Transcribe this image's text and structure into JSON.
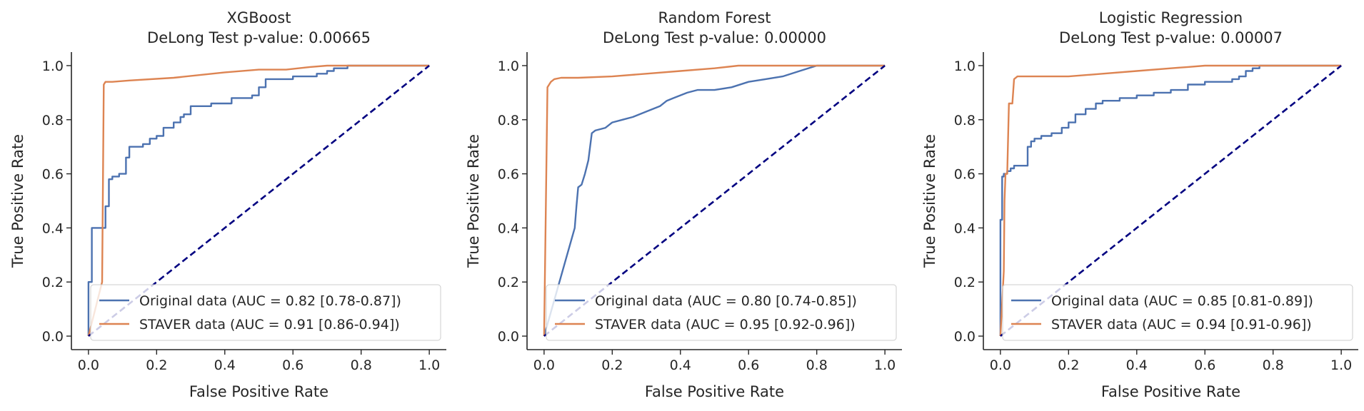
{
  "chart_data": [
    {
      "type": "line",
      "title": "XGBoost",
      "subtitle": "DeLong Test p-value: 0.00665",
      "xlabel": "False Positive Rate",
      "ylabel": "True Positive Rate",
      "xlim": [
        -0.05,
        1.05
      ],
      "ylim": [
        -0.05,
        1.05
      ],
      "xticks": [
        "0.0",
        "0.2",
        "0.4",
        "0.6",
        "0.8",
        "1.0"
      ],
      "yticks": [
        "0.0",
        "0.2",
        "0.4",
        "0.6",
        "0.8",
        "1.0"
      ],
      "grid": false,
      "legend_position": "bottom-right",
      "series": [
        {
          "name": "Original data (AUC = 0.82 [0.78-0.87])",
          "color": "#4c72b0",
          "step": true,
          "x": [
            0,
            0,
            0.01,
            0.01,
            0.05,
            0.05,
            0.06,
            0.07,
            0.09,
            0.11,
            0.12,
            0.13,
            0.16,
            0.18,
            0.2,
            0.22,
            0.25,
            0.27,
            0.28,
            0.3,
            0.33,
            0.36,
            0.4,
            0.42,
            0.45,
            0.48,
            0.5,
            0.52,
            0.55,
            0.6,
            0.65,
            0.67,
            0.7,
            0.72,
            0.74,
            0.76,
            0.78,
            0.85,
            1.0
          ],
          "y": [
            0,
            0.2,
            0.2,
            0.4,
            0.42,
            0.48,
            0.58,
            0.59,
            0.6,
            0.66,
            0.7,
            0.7,
            0.71,
            0.73,
            0.74,
            0.77,
            0.79,
            0.81,
            0.82,
            0.85,
            0.85,
            0.86,
            0.86,
            0.88,
            0.88,
            0.89,
            0.92,
            0.95,
            0.95,
            0.96,
            0.96,
            0.97,
            0.98,
            0.99,
            0.99,
            1.0,
            1.0,
            1.0,
            1.0
          ]
        },
        {
          "name": "STAVER data (AUC = 0.91 [0.86-0.94])",
          "color": "#dd8452",
          "step": false,
          "x": [
            0,
            0.04,
            0.045,
            0.05,
            0.07,
            0.12,
            0.25,
            0.4,
            0.5,
            0.58,
            0.65,
            0.7,
            0.75,
            1.0
          ],
          "y": [
            0,
            0.2,
            0.93,
            0.94,
            0.94,
            0.945,
            0.955,
            0.975,
            0.985,
            0.985,
            0.995,
            1.0,
            1.0,
            1.0
          ]
        },
        {
          "name": "",
          "color": "#000080",
          "dashed": true,
          "x": [
            0,
            1
          ],
          "y": [
            0,
            1
          ]
        }
      ]
    },
    {
      "type": "line",
      "title": "Random Forest",
      "subtitle": "DeLong Test p-value: 0.00000",
      "xlabel": "False Positive Rate",
      "ylabel": "True Positive Rate",
      "xlim": [
        -0.05,
        1.05
      ],
      "ylim": [
        -0.05,
        1.05
      ],
      "xticks": [
        "0.0",
        "0.2",
        "0.4",
        "0.6",
        "0.8",
        "1.0"
      ],
      "yticks": [
        "0.0",
        "0.2",
        "0.4",
        "0.6",
        "0.8",
        "1.0"
      ],
      "grid": false,
      "legend_position": "bottom-right",
      "series": [
        {
          "name": "Original data (AUC = 0.80 [0.74-0.85])",
          "color": "#4c72b0",
          "step": false,
          "x": [
            0,
            0.09,
            0.095,
            0.1,
            0.11,
            0.12,
            0.13,
            0.14,
            0.15,
            0.18,
            0.2,
            0.23,
            0.26,
            0.3,
            0.34,
            0.36,
            0.38,
            0.42,
            0.45,
            0.5,
            0.55,
            0.6,
            0.65,
            0.7,
            0.75,
            0.8,
            1.0
          ],
          "y": [
            0,
            0.4,
            0.48,
            0.55,
            0.56,
            0.6,
            0.65,
            0.75,
            0.76,
            0.77,
            0.79,
            0.8,
            0.81,
            0.83,
            0.85,
            0.87,
            0.88,
            0.9,
            0.91,
            0.91,
            0.92,
            0.94,
            0.95,
            0.96,
            0.98,
            1.0,
            1.0
          ]
        },
        {
          "name": "STAVER data (AUC = 0.95 [0.92-0.96])",
          "color": "#dd8452",
          "step": false,
          "x": [
            0,
            0.01,
            0.015,
            0.02,
            0.03,
            0.05,
            0.1,
            0.2,
            0.3,
            0.4,
            0.5,
            0.57,
            0.6,
            0.8,
            1.0
          ],
          "y": [
            0,
            0.92,
            0.93,
            0.94,
            0.95,
            0.955,
            0.955,
            0.96,
            0.97,
            0.98,
            0.99,
            1.0,
            1.0,
            1.0,
            1.0
          ]
        },
        {
          "name": "",
          "color": "#000080",
          "dashed": true,
          "x": [
            0,
            1
          ],
          "y": [
            0,
            1
          ]
        }
      ]
    },
    {
      "type": "line",
      "title": "Logistic Regression",
      "subtitle": "DeLong Test p-value: 0.00007",
      "xlabel": "False Positive Rate",
      "ylabel": "True Positive Rate",
      "xlim": [
        -0.05,
        1.05
      ],
      "ylim": [
        -0.05,
        1.05
      ],
      "xticks": [
        "0.0",
        "0.2",
        "0.4",
        "0.6",
        "0.8",
        "1.0"
      ],
      "yticks": [
        "0.0",
        "0.2",
        "0.4",
        "0.6",
        "0.8",
        "1.0"
      ],
      "grid": false,
      "legend_position": "bottom-right",
      "series": [
        {
          "name": "Original data (AUC = 0.85 [0.81-0.89])",
          "color": "#4c72b0",
          "step": true,
          "x": [
            0,
            0,
            0.005,
            0.01,
            0.02,
            0.03,
            0.04,
            0.05,
            0.08,
            0.09,
            0.1,
            0.12,
            0.15,
            0.18,
            0.2,
            0.22,
            0.25,
            0.28,
            0.3,
            0.35,
            0.4,
            0.45,
            0.5,
            0.55,
            0.6,
            0.65,
            0.68,
            0.7,
            0.72,
            0.74,
            0.76,
            1.0
          ],
          "y": [
            0,
            0.43,
            0.59,
            0.6,
            0.61,
            0.62,
            0.63,
            0.63,
            0.7,
            0.72,
            0.73,
            0.74,
            0.75,
            0.77,
            0.79,
            0.82,
            0.84,
            0.86,
            0.87,
            0.88,
            0.89,
            0.9,
            0.91,
            0.93,
            0.94,
            0.94,
            0.95,
            0.96,
            0.98,
            0.99,
            1.0,
            1.0
          ]
        },
        {
          "name": "STAVER data (AUC = 0.94 [0.91-0.96])",
          "color": "#dd8452",
          "step": false,
          "x": [
            0,
            0.01,
            0.012,
            0.015,
            0.02,
            0.025,
            0.035,
            0.04,
            0.05,
            0.1,
            0.2,
            0.3,
            0.4,
            0.5,
            0.55,
            0.6,
            0.65,
            1.0
          ],
          "y": [
            0,
            0.24,
            0.5,
            0.6,
            0.6,
            0.86,
            0.86,
            0.95,
            0.96,
            0.96,
            0.96,
            0.97,
            0.98,
            0.99,
            0.995,
            1.0,
            1.0,
            1.0
          ]
        },
        {
          "name": "",
          "color": "#000080",
          "dashed": true,
          "x": [
            0,
            1
          ],
          "y": [
            0,
            1
          ]
        }
      ]
    }
  ]
}
